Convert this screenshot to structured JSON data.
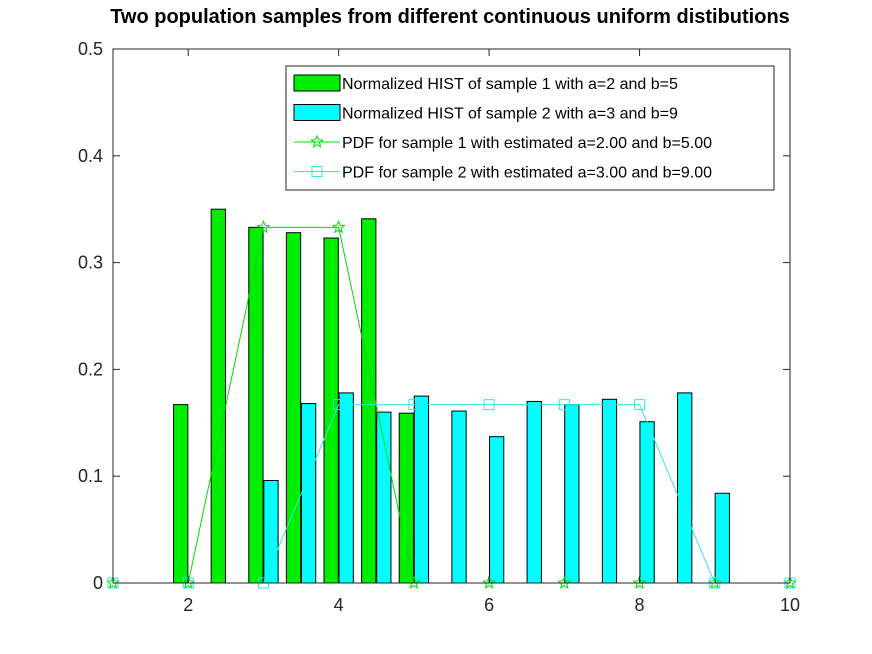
{
  "chart_data": {
    "type": "bar",
    "title": "Two population samples from different continuous uniform distibutions",
    "xlabel": "",
    "ylabel": "",
    "xlim": [
      1,
      10
    ],
    "ylim": [
      0,
      0.5
    ],
    "grid": false,
    "legend_position": "top-right",
    "x_ticks": [
      2,
      4,
      6,
      8,
      10
    ],
    "x_tick_labels": [
      "2",
      "4",
      "6",
      "8",
      "10"
    ],
    "y_ticks": [
      0,
      0.1,
      0.2,
      0.3,
      0.4,
      0.5
    ],
    "y_tick_labels": [
      "0",
      "0.1",
      "0.2",
      "0.3",
      "0.4",
      "0.5"
    ],
    "bar_width": 0.19,
    "bar_series": [
      {
        "name": "Normalized HIST of sample 1 with a=2 and b=5",
        "color": "#00ee00",
        "x": [
          1.9,
          2.4,
          2.9,
          3.4,
          3.9,
          4.4,
          4.9
        ],
        "values": [
          0.167,
          0.35,
          0.333,
          0.328,
          0.323,
          0.341,
          0.159
        ]
      },
      {
        "name": "Normalized HIST of sample 2 with a=3 and b=9",
        "color": "#00ffff",
        "x": [
          3.1,
          3.6,
          4.1,
          4.6,
          5.1,
          5.6,
          6.1,
          6.6,
          7.1,
          7.6,
          8.1,
          8.6,
          9.1
        ],
        "values": [
          0.096,
          0.168,
          0.178,
          0.16,
          0.175,
          0.161,
          0.137,
          0.17,
          0.167,
          0.172,
          0.151,
          0.178,
          0.084
        ]
      }
    ],
    "line_series": [
      {
        "name": "PDF for sample 1 with estimated a=2.00 and b=5.00",
        "color": "#00dd00",
        "marker": "star",
        "x": [
          1,
          2,
          3,
          4,
          5,
          6,
          7,
          8,
          9,
          10
        ],
        "values": [
          0,
          0,
          0.333,
          0.333,
          0,
          0,
          0,
          0,
          0,
          0
        ]
      },
      {
        "name": "PDF for sample 2 with estimated a=3.00 and b=9.00",
        "color": "#33e6e6",
        "marker": "square",
        "x": [
          1,
          2,
          3,
          4,
          5,
          6,
          7,
          8,
          9,
          10
        ],
        "values": [
          0,
          0,
          0,
          0.167,
          0.167,
          0.167,
          0.167,
          0.167,
          0,
          0
        ]
      }
    ]
  }
}
